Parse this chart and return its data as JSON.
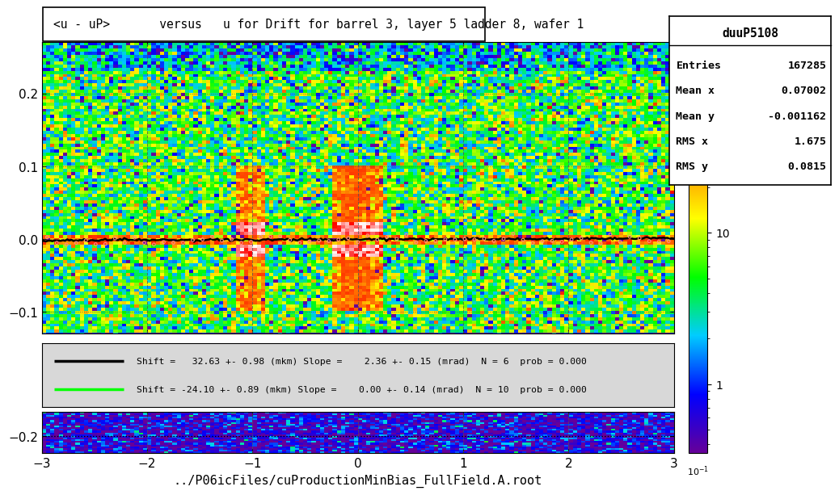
{
  "title": "<u - uP>       versus   u for Drift for barrel 3, layer 5 ladder 8, wafer 1",
  "xlabel": "../P06icFiles/cuProductionMinBias_FullField.A.root",
  "xlim": [
    -3,
    3
  ],
  "stats_title": "duuP5108",
  "stats": {
    "Entries": "167285",
    "Mean x": "0.07002",
    "Mean y": "-0.001162",
    "RMS x": "1.675",
    "RMS y": "0.0815"
  },
  "legend_line1_text": "Shift =   32.63 +- 0.98 (mkm) Slope =    2.36 +- 0.15 (mrad)  N = 6  prob = 0.000",
  "legend_line2_text": "Shift = -24.10 +- 0.89 (mkm) Slope =    0.00 +- 0.14 (mrad)  N = 10  prob = 0.000",
  "bg_color": "#ffffff",
  "seed": 42
}
